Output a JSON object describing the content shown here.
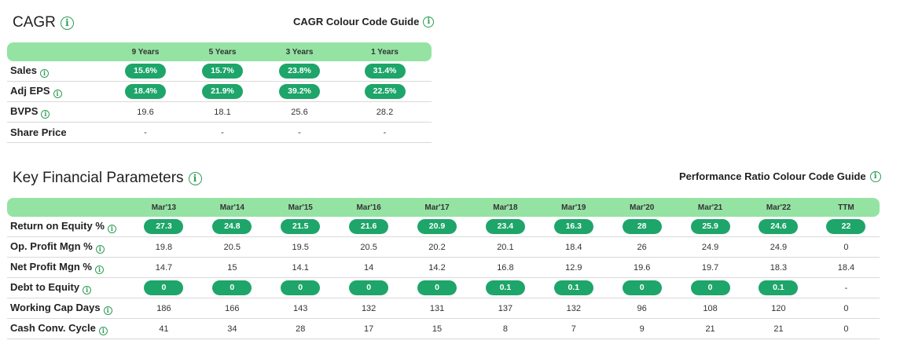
{
  "cagr": {
    "title": "CAGR",
    "guide": "CAGR Colour Code Guide",
    "columns": [
      "9 Years",
      "5 Years",
      "3 Years",
      "1 Years"
    ],
    "rows": [
      {
        "label": "Sales",
        "pill": true,
        "values": [
          "15.6%",
          "15.7%",
          "23.8%",
          "31.4%"
        ]
      },
      {
        "label": "Adj EPS",
        "pill": true,
        "values": [
          "18.4%",
          "21.9%",
          "39.2%",
          "22.5%"
        ]
      },
      {
        "label": "BVPS",
        "pill": false,
        "values": [
          "19.6",
          "18.1",
          "25.6",
          "28.2"
        ]
      },
      {
        "label": "Share Price",
        "pill": false,
        "info": false,
        "values": [
          "-",
          "-",
          "-",
          "-"
        ]
      }
    ]
  },
  "kfp": {
    "title": "Key Financial Parameters",
    "guide": "Performance Ratio Colour Code Guide",
    "columns": [
      "Mar'13",
      "Mar'14",
      "Mar'15",
      "Mar'16",
      "Mar'17",
      "Mar'18",
      "Mar'19",
      "Mar'20",
      "Mar'21",
      "Mar'22",
      "TTM"
    ],
    "rows": [
      {
        "label": "Return on Equity %",
        "pill": true,
        "values": [
          "27.3",
          "24.8",
          "21.5",
          "21.6",
          "20.9",
          "23.4",
          "16.3",
          "28",
          "25.9",
          "24.6",
          "22"
        ]
      },
      {
        "label": "Op. Profit Mgn %",
        "pill": false,
        "values": [
          "19.8",
          "20.5",
          "19.5",
          "20.5",
          "20.2",
          "20.1",
          "18.4",
          "26",
          "24.9",
          "24.9",
          "0"
        ]
      },
      {
        "label": "Net Profit Mgn %",
        "pill": false,
        "values": [
          "14.7",
          "15",
          "14.1",
          "14",
          "14.2",
          "16.8",
          "12.9",
          "19.6",
          "19.7",
          "18.3",
          "18.4"
        ]
      },
      {
        "label": "Debt to Equity",
        "pill": true,
        "pill_count": 10,
        "values": [
          "0",
          "0",
          "0",
          "0",
          "0",
          "0.1",
          "0.1",
          "0",
          "0",
          "0.1",
          "-"
        ]
      },
      {
        "label": "Working Cap Days",
        "pill": false,
        "values": [
          "186",
          "166",
          "143",
          "132",
          "131",
          "137",
          "132",
          "96",
          "108",
          "120",
          "0"
        ]
      },
      {
        "label": "Cash Conv. Cycle",
        "pill": false,
        "values": [
          "41",
          "34",
          "28",
          "17",
          "15",
          "8",
          "7",
          "9",
          "21",
          "21",
          "0"
        ]
      }
    ]
  },
  "icons": {
    "info": "info-icon"
  },
  "colors": {
    "accent": "#1ea56a",
    "header_band": "#94e3a3",
    "info": "#2e9d56"
  }
}
